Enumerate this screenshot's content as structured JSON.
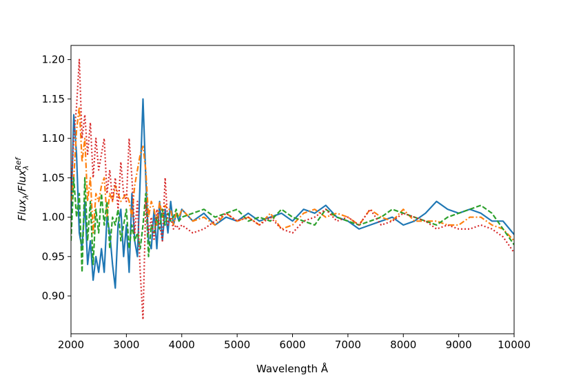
{
  "chart_data": {
    "type": "line",
    "xlabel": "Wavelength Å",
    "ylabel": [
      "Flux",
      "λ",
      "/Flux",
      "λ",
      "Ref"
    ],
    "xlim": [
      2000,
      10000
    ],
    "ylim": [
      0.852,
      1.218
    ],
    "xticks": [
      2000,
      3000,
      4000,
      5000,
      6000,
      7000,
      8000,
      9000,
      10000
    ],
    "yticks": [
      {
        "value": 0.9,
        "label": "0.90"
      },
      0.95,
      {
        "value": 1.0,
        "label": "1.00"
      },
      1.05,
      {
        "value": 1.1,
        "label": "1.10"
      },
      1.15,
      {
        "value": 1.2,
        "label": "1.20"
      }
    ],
    "grid": false,
    "x": [
      2000,
      2050,
      2100,
      2150,
      2200,
      2250,
      2300,
      2350,
      2400,
      2450,
      2500,
      2550,
      2600,
      2650,
      2700,
      2750,
      2800,
      2850,
      2900,
      2950,
      3000,
      3050,
      3100,
      3150,
      3200,
      3250,
      3300,
      3350,
      3400,
      3450,
      3500,
      3550,
      3600,
      3650,
      3700,
      3750,
      3800,
      3850,
      3900,
      3950,
      4000,
      4200,
      4400,
      4600,
      4800,
      5000,
      5200,
      5400,
      5600,
      5800,
      6000,
      6200,
      6400,
      6600,
      6800,
      7000,
      7200,
      7400,
      7600,
      7800,
      8000,
      8200,
      8400,
      8600,
      8800,
      9000,
      9200,
      9400,
      9600,
      9800,
      10000
    ],
    "series": [
      {
        "color": "#1f77b4",
        "style": "solid",
        "values": [
          1.0,
          1.13,
          1.08,
          0.98,
          0.96,
          1.02,
          0.94,
          0.97,
          0.92,
          0.95,
          0.93,
          0.96,
          0.93,
          1.0,
          0.98,
          0.94,
          0.91,
          0.99,
          1.01,
          0.95,
          0.99,
          0.93,
          1.03,
          0.97,
          0.95,
          1.05,
          1.15,
          1.05,
          0.97,
          0.96,
          1.01,
          0.96,
          1.02,
          0.97,
          1.01,
          0.98,
          1.02,
          0.99,
          1.005,
          0.995,
          1.01,
          0.995,
          1.005,
          0.99,
          1.0,
          0.995,
          1.005,
          0.995,
          1.0,
          1.005,
          0.995,
          1.01,
          1.005,
          1.015,
          1.0,
          0.995,
          0.985,
          0.99,
          0.995,
          1.0,
          0.99,
          0.995,
          1.005,
          1.02,
          1.01,
          1.005,
          1.01,
          1.005,
          0.995,
          0.995,
          0.978
        ]
      },
      {
        "color": "#ff7f0e",
        "style": "dashdot",
        "values": [
          1.02,
          1.05,
          1.11,
          1.14,
          1.07,
          1.1,
          1.02,
          1.05,
          0.98,
          1.03,
          1.02,
          1.04,
          1.05,
          1.0,
          1.03,
          1.02,
          1.04,
          1.03,
          1.02,
          1.025,
          1.03,
          1.02,
          1.0,
          1.04,
          1.06,
          1.08,
          1.09,
          1.06,
          1.0,
          1.02,
          1.01,
          0.99,
          1.02,
          1.0,
          1.015,
          1.01,
          1.01,
          0.99,
          1.005,
          1.0,
          1.01,
          0.995,
          1.0,
          0.99,
          1.005,
          0.995,
          1.0,
          0.99,
          1.005,
          0.985,
          0.99,
          1.005,
          1.01,
          1.0,
          1.005,
          1.0,
          0.99,
          1.01,
          1.0,
          0.995,
          1.01,
          0.995,
          0.995,
          0.995,
          0.99,
          0.99,
          1.0,
          1.0,
          0.99,
          0.985,
          0.97
        ]
      },
      {
        "color": "#2ca02c",
        "style": "dashed",
        "values": [
          0.97,
          1.05,
          1.0,
          1.03,
          0.93,
          1.05,
          0.97,
          1.02,
          0.94,
          1.01,
          0.98,
          1.03,
          0.99,
          1.02,
          0.96,
          1.0,
          0.99,
          1.01,
          0.97,
          0.99,
          1.01,
          0.96,
          0.99,
          0.97,
          0.98,
          0.96,
          0.99,
          1.03,
          0.95,
          0.99,
          0.98,
          1.0,
          0.985,
          1.01,
          0.99,
          1.005,
          0.995,
          1.0,
          1.01,
          0.995,
          1.0,
          1.005,
          1.01,
          1.0,
          1.005,
          1.01,
          0.995,
          1.0,
          0.995,
          1.01,
          1.0,
          0.995,
          0.99,
          1.01,
          1.0,
          0.995,
          0.99,
          0.995,
          1.0,
          1.01,
          1.005,
          1.0,
          0.995,
          0.99,
          1.0,
          1.005,
          1.01,
          1.015,
          1.005,
          0.985,
          0.965
        ]
      },
      {
        "color": "#d62728",
        "style": "dotted",
        "values": [
          1.03,
          1.1,
          1.14,
          1.2,
          1.1,
          1.13,
          1.08,
          1.12,
          1.05,
          1.1,
          1.06,
          1.08,
          1.1,
          1.03,
          1.06,
          1.02,
          1.05,
          1.01,
          1.07,
          1.03,
          1.02,
          1.1,
          1.05,
          0.98,
          1.02,
          0.93,
          0.87,
          1.02,
          0.98,
          1.0,
          0.97,
          1.01,
          0.99,
          0.97,
          1.05,
          0.99,
          1.0,
          0.985,
          0.99,
          0.985,
          0.99,
          0.98,
          0.985,
          0.995,
          1.005,
          0.995,
          1.0,
          0.99,
          1.0,
          0.985,
          0.98,
          0.995,
          1.0,
          1.01,
          0.995,
          1.0,
          0.99,
          1.01,
          0.99,
          0.995,
          1.005,
          1.0,
          0.995,
          0.985,
          0.99,
          0.985,
          0.985,
          0.99,
          0.985,
          0.975,
          0.955
        ]
      }
    ]
  }
}
